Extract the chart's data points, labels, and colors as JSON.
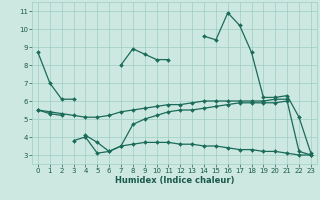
{
  "xlabel": "Humidex (Indice chaleur)",
  "background_color": "#cde8e0",
  "grid_color": "#9ecec4",
  "line_color": "#1a6b5a",
  "x_values": [
    0,
    1,
    2,
    3,
    4,
    5,
    6,
    7,
    8,
    9,
    10,
    11,
    12,
    13,
    14,
    15,
    16,
    17,
    18,
    19,
    20,
    21,
    22,
    23
  ],
  "series1": [
    8.7,
    7.0,
    6.1,
    6.1,
    null,
    null,
    null,
    8.0,
    8.9,
    8.6,
    8.3,
    8.3,
    null,
    null,
    9.6,
    9.4,
    10.9,
    10.2,
    8.7,
    6.2,
    6.2,
    6.3,
    5.1,
    3.1
  ],
  "series2": [
    5.5,
    5.3,
    5.2,
    null,
    4.1,
    3.7,
    3.2,
    3.5,
    4.7,
    5.0,
    5.2,
    5.4,
    5.5,
    5.5,
    5.6,
    5.7,
    5.8,
    5.9,
    5.9,
    5.9,
    5.9,
    6.0,
    3.2,
    3.0
  ],
  "series3": [
    5.5,
    5.4,
    5.3,
    5.2,
    5.1,
    5.1,
    5.2,
    5.4,
    5.5,
    5.6,
    5.7,
    5.8,
    5.8,
    5.9,
    6.0,
    6.0,
    6.0,
    6.0,
    6.0,
    6.0,
    6.1,
    6.1,
    null,
    null
  ],
  "series4": [
    null,
    null,
    null,
    3.8,
    4.0,
    3.1,
    3.2,
    3.5,
    3.6,
    3.7,
    3.7,
    3.7,
    3.6,
    3.6,
    3.5,
    3.5,
    3.4,
    3.3,
    3.3,
    3.2,
    3.2,
    3.1,
    3.0,
    3.0
  ],
  "ylim": [
    2.5,
    11.5
  ],
  "xlim": [
    -0.5,
    23.5
  ],
  "yticks": [
    3,
    4,
    5,
    6,
    7,
    8,
    9,
    10,
    11
  ],
  "xticks": [
    0,
    1,
    2,
    3,
    4,
    5,
    6,
    7,
    8,
    9,
    10,
    11,
    12,
    13,
    14,
    15,
    16,
    17,
    18,
    19,
    20,
    21,
    22,
    23
  ]
}
